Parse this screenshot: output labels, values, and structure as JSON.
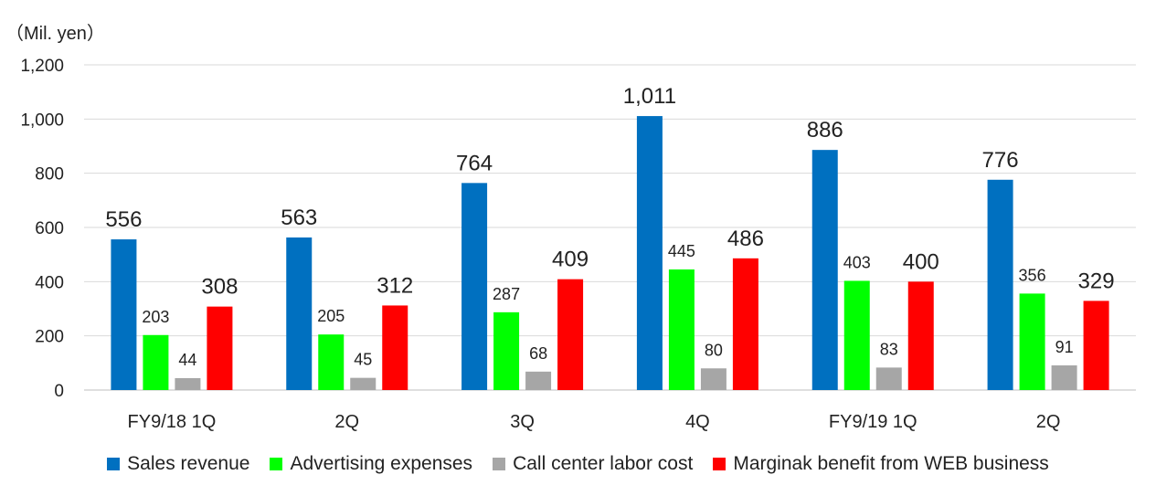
{
  "chart_data": {
    "type": "bar",
    "unit_label": "（Mil. yen）",
    "categories": [
      "FY9/18 1Q",
      "2Q",
      "3Q",
      "4Q",
      "FY9/19 1Q",
      "2Q"
    ],
    "series": [
      {
        "name": "Sales revenue",
        "color": "#0070C0",
        "values": [
          556,
          563,
          764,
          1011,
          886,
          776
        ],
        "labels": [
          "556",
          "563",
          "764",
          "1,011",
          "886",
          "776"
        ]
      },
      {
        "name": "Advertising expenses",
        "color": "#00FF00",
        "values": [
          203,
          205,
          287,
          445,
          403,
          356
        ],
        "labels": [
          "203",
          "205",
          "287",
          "445",
          "403",
          "356"
        ]
      },
      {
        "name": "Call center labor cost",
        "color": "#A6A6A6",
        "values": [
          44,
          45,
          68,
          80,
          83,
          91
        ],
        "labels": [
          "44",
          "45",
          "68",
          "80",
          "83",
          "91"
        ]
      },
      {
        "name": "Marginak benefit from WEB business",
        "color": "#FF0000",
        "values": [
          308,
          312,
          409,
          486,
          400,
          329
        ],
        "labels": [
          "308",
          "312",
          "409",
          "486",
          "400",
          "329"
        ]
      }
    ],
    "ylim": [
      0,
      1200
    ],
    "yticks": [
      0,
      200,
      400,
      600,
      800,
      1000,
      1200
    ],
    "ytick_labels": [
      "0",
      "200",
      "400",
      "600",
      "800",
      "1,000",
      "1,200"
    ],
    "grid": true,
    "legend_position": "bottom"
  }
}
